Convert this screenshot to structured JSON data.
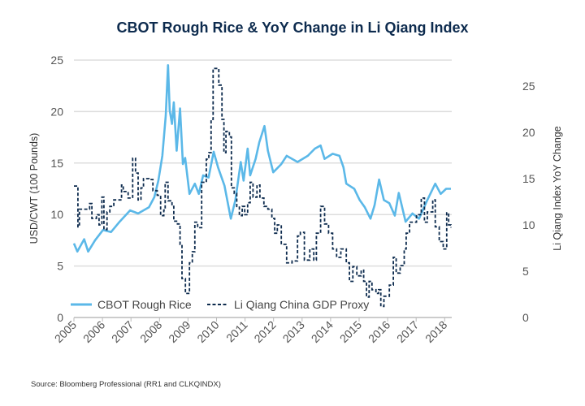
{
  "chart_data": {
    "type": "line",
    "title": "CBOT Rough Rice & YoY Change in Li Qiang Index",
    "ylabel_left": "USD/CWT (100 Pounds)",
    "ylabel_right": "Li Qiang Index YoY Change",
    "xlim": [
      2005,
      2018.3
    ],
    "ylim_left": [
      0,
      25
    ],
    "ylim_right": [
      0,
      27.8
    ],
    "x_ticks": [
      "2005",
      "2006",
      "2007",
      "2008",
      "2009",
      "2010",
      "2011",
      "2012",
      "2013",
      "2014",
      "2015",
      "2016",
      "2017",
      "2018"
    ],
    "y_ticks_left": [
      "0",
      "5",
      "10",
      "15",
      "20",
      "25"
    ],
    "y_ticks_right": [
      "0",
      "5",
      "10",
      "15",
      "20",
      "25"
    ],
    "grid": "horizontal",
    "legend_position": "bottom-left inside",
    "colors": {
      "rice": "#5bb8e8",
      "proxy": "#0d2b4e",
      "title": "#0d2b4e"
    },
    "series": [
      {
        "name": "CBOT Rough Rice",
        "axis": "left",
        "style": "solid",
        "points": [
          [
            2005.0,
            7.2
          ],
          [
            2005.12,
            6.4
          ],
          [
            2005.36,
            7.6
          ],
          [
            2005.5,
            6.4
          ],
          [
            2005.74,
            7.5
          ],
          [
            2006.02,
            8.5
          ],
          [
            2006.3,
            8.3
          ],
          [
            2006.6,
            9.3
          ],
          [
            2006.97,
            10.4
          ],
          [
            2007.25,
            10.1
          ],
          [
            2007.63,
            10.7
          ],
          [
            2007.82,
            11.7
          ],
          [
            2007.96,
            13.3
          ],
          [
            2008.1,
            15.7
          ],
          [
            2008.22,
            19.6
          ],
          [
            2008.3,
            24.5
          ],
          [
            2008.36,
            20.1
          ],
          [
            2008.44,
            18.8
          ],
          [
            2008.5,
            20.9
          ],
          [
            2008.6,
            16.2
          ],
          [
            2008.72,
            20.3
          ],
          [
            2008.82,
            14.9
          ],
          [
            2008.9,
            15.5
          ],
          [
            2009.05,
            12.0
          ],
          [
            2009.24,
            13.0
          ],
          [
            2009.38,
            12.0
          ],
          [
            2009.53,
            13.8
          ],
          [
            2009.72,
            13.6
          ],
          [
            2009.9,
            16.1
          ],
          [
            2010.05,
            14.6
          ],
          [
            2010.28,
            12.8
          ],
          [
            2010.5,
            9.6
          ],
          [
            2010.66,
            11.4
          ],
          [
            2010.85,
            15.1
          ],
          [
            2010.95,
            13.3
          ],
          [
            2011.09,
            16.4
          ],
          [
            2011.18,
            13.8
          ],
          [
            2011.37,
            15.4
          ],
          [
            2011.5,
            17.0
          ],
          [
            2011.68,
            18.6
          ],
          [
            2011.8,
            16.2
          ],
          [
            2011.99,
            14.1
          ],
          [
            2012.27,
            14.9
          ],
          [
            2012.46,
            15.7
          ],
          [
            2012.84,
            15.1
          ],
          [
            2013.2,
            15.7
          ],
          [
            2013.45,
            16.4
          ],
          [
            2013.65,
            16.7
          ],
          [
            2013.79,
            15.4
          ],
          [
            2014.07,
            15.9
          ],
          [
            2014.31,
            15.7
          ],
          [
            2014.45,
            14.6
          ],
          [
            2014.55,
            13.0
          ],
          [
            2014.83,
            12.5
          ],
          [
            2015.02,
            11.4
          ],
          [
            2015.2,
            10.7
          ],
          [
            2015.4,
            9.6
          ],
          [
            2015.54,
            10.9
          ],
          [
            2015.7,
            13.4
          ],
          [
            2015.87,
            11.4
          ],
          [
            2016.06,
            11.1
          ],
          [
            2016.25,
            9.9
          ],
          [
            2016.39,
            12.1
          ],
          [
            2016.63,
            9.3
          ],
          [
            2016.87,
            10.1
          ],
          [
            2017.1,
            9.6
          ],
          [
            2017.39,
            11.4
          ],
          [
            2017.67,
            13.0
          ],
          [
            2017.86,
            12.0
          ],
          [
            2018.05,
            12.5
          ],
          [
            2018.22,
            12.5
          ]
        ]
      },
      {
        "name": "Li Qiang China GDP Proxy",
        "axis": "right",
        "style": "dashed-step",
        "points": [
          [
            2005.0,
            14.2
          ],
          [
            2005.14,
            9.8
          ],
          [
            2005.19,
            11.7
          ],
          [
            2005.55,
            12.3
          ],
          [
            2005.63,
            10.7
          ],
          [
            2005.79,
            11.1
          ],
          [
            2005.88,
            10.0
          ],
          [
            2005.98,
            13.0
          ],
          [
            2006.05,
            9.5
          ],
          [
            2006.16,
            11.4
          ],
          [
            2006.26,
            12.0
          ],
          [
            2006.4,
            12.7
          ],
          [
            2006.67,
            14.3
          ],
          [
            2006.73,
            13.6
          ],
          [
            2006.9,
            12.9
          ],
          [
            2007.06,
            17.2
          ],
          [
            2007.16,
            15.6
          ],
          [
            2007.25,
            12.7
          ],
          [
            2007.35,
            14.0
          ],
          [
            2007.44,
            15.0
          ],
          [
            2007.63,
            14.9
          ],
          [
            2007.77,
            13.7
          ],
          [
            2007.92,
            13.2
          ],
          [
            2008.04,
            11.0
          ],
          [
            2008.15,
            11.6
          ],
          [
            2008.2,
            14.6
          ],
          [
            2008.3,
            12.6
          ],
          [
            2008.44,
            12.0
          ],
          [
            2008.5,
            10.4
          ],
          [
            2008.63,
            10.1
          ],
          [
            2008.72,
            7.9
          ],
          [
            2008.79,
            4.2
          ],
          [
            2008.91,
            2.6
          ],
          [
            2009.05,
            5.9
          ],
          [
            2009.15,
            7.1
          ],
          [
            2009.24,
            10.3
          ],
          [
            2009.34,
            9.7
          ],
          [
            2009.48,
            14.6
          ],
          [
            2009.64,
            17.1
          ],
          [
            2009.73,
            17.8
          ],
          [
            2009.81,
            21.4
          ],
          [
            2009.88,
            26.9
          ],
          [
            2010.08,
            25.1
          ],
          [
            2010.19,
            21.4
          ],
          [
            2010.26,
            17.8
          ],
          [
            2010.33,
            20.1
          ],
          [
            2010.45,
            19.5
          ],
          [
            2010.52,
            14.0
          ],
          [
            2010.62,
            13.4
          ],
          [
            2010.71,
            12.0
          ],
          [
            2010.8,
            11.0
          ],
          [
            2010.9,
            12.0
          ],
          [
            2010.99,
            11.1
          ],
          [
            2011.09,
            12.4
          ],
          [
            2011.18,
            14.6
          ],
          [
            2011.28,
            13.0
          ],
          [
            2011.42,
            14.3
          ],
          [
            2011.52,
            12.9
          ],
          [
            2011.66,
            12.0
          ],
          [
            2011.8,
            11.7
          ],
          [
            2011.94,
            10.7
          ],
          [
            2012.04,
            9.1
          ],
          [
            2012.13,
            10.0
          ],
          [
            2012.27,
            7.9
          ],
          [
            2012.46,
            5.9
          ],
          [
            2012.65,
            6.1
          ],
          [
            2012.84,
            8.8
          ],
          [
            2012.94,
            9.2
          ],
          [
            2013.08,
            6.2
          ],
          [
            2013.27,
            7.4
          ],
          [
            2013.41,
            6.2
          ],
          [
            2013.5,
            9.1
          ],
          [
            2013.65,
            12.0
          ],
          [
            2013.79,
            10.1
          ],
          [
            2013.93,
            9.1
          ],
          [
            2014.07,
            7.4
          ],
          [
            2014.21,
            6.5
          ],
          [
            2014.36,
            7.4
          ],
          [
            2014.55,
            5.9
          ],
          [
            2014.66,
            3.9
          ],
          [
            2014.78,
            5.5
          ],
          [
            2014.92,
            4.5
          ],
          [
            2015.07,
            5.1
          ],
          [
            2015.16,
            3.9
          ],
          [
            2015.26,
            2.2
          ],
          [
            2015.35,
            3.9
          ],
          [
            2015.45,
            3.0
          ],
          [
            2015.59,
            2.6
          ],
          [
            2015.68,
            3.0
          ],
          [
            2015.76,
            1.2
          ],
          [
            2015.87,
            2.3
          ],
          [
            2016.06,
            3.5
          ],
          [
            2016.2,
            6.5
          ],
          [
            2016.3,
            4.8
          ],
          [
            2016.44,
            5.6
          ],
          [
            2016.58,
            7.4
          ],
          [
            2016.65,
            9.1
          ],
          [
            2016.77,
            10.3
          ],
          [
            2017.01,
            11.1
          ],
          [
            2017.18,
            12.9
          ],
          [
            2017.29,
            10.3
          ],
          [
            2017.39,
            11.4
          ],
          [
            2017.58,
            12.7
          ],
          [
            2017.67,
            9.8
          ],
          [
            2017.81,
            8.2
          ],
          [
            2017.95,
            7.4
          ],
          [
            2018.07,
            11.3
          ],
          [
            2018.14,
            10.0
          ],
          [
            2018.22,
            9.7
          ]
        ]
      }
    ],
    "source": "Source: Bloomberg Professional (RR1 and CLKQINDX)"
  }
}
